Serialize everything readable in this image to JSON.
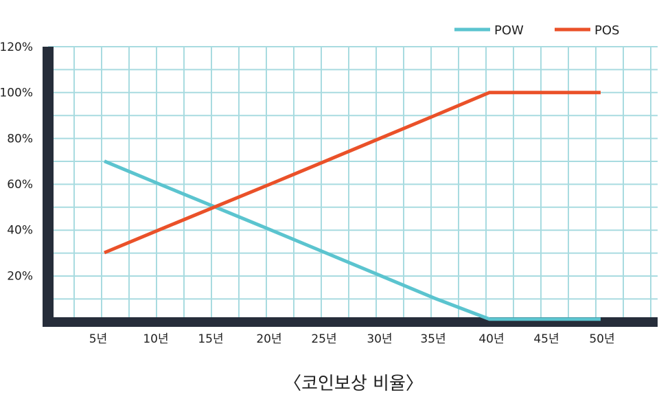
{
  "chart_data": {
    "type": "line",
    "categories": [
      "5년",
      "10년",
      "15년",
      "20년",
      "25년",
      "30년",
      "35년",
      "40년",
      "45년",
      "50년"
    ],
    "x": [
      5,
      10,
      15,
      20,
      25,
      30,
      35,
      40,
      45,
      50
    ],
    "series": [
      {
        "name": "POW",
        "color": "#5bc4cf",
        "values": [
          70,
          60,
          50,
          40,
          30,
          20,
          10,
          1,
          1,
          1
        ]
      },
      {
        "name": "POS",
        "color": "#ea5129",
        "values": [
          30,
          40,
          50,
          60,
          70,
          80,
          90,
          100,
          100,
          100
        ]
      }
    ],
    "yticks": [
      "120%",
      "100%",
      "80%",
      "60%",
      "40%",
      "20%"
    ],
    "ytick_values": [
      120,
      100,
      80,
      60,
      40,
      20
    ],
    "ylim": [
      0,
      120
    ],
    "xlim": [
      0,
      54
    ],
    "caption": "〈코인보상 비율〉",
    "grid": true,
    "legend_position": "top-right",
    "colors": {
      "axis": "#262d3a",
      "grid": "#a8dbe0"
    }
  }
}
